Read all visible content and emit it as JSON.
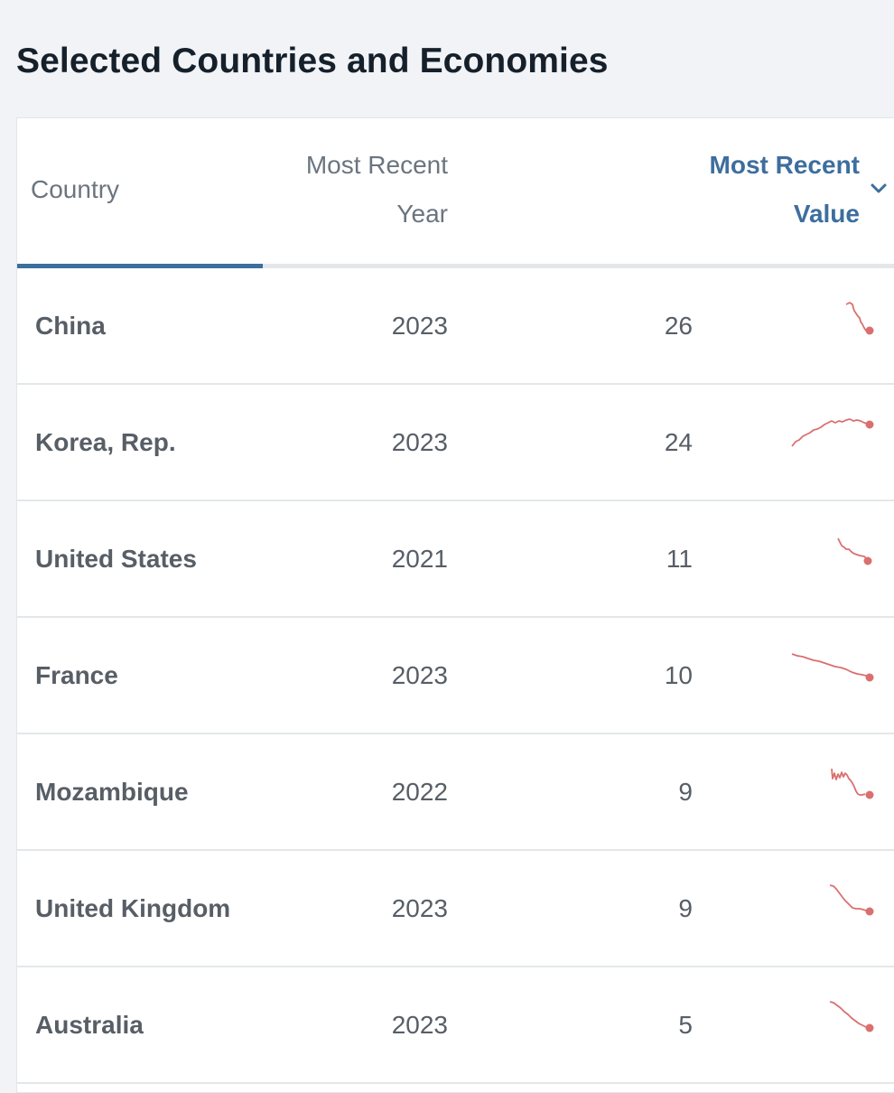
{
  "title": "Selected Countries and Economies",
  "table": {
    "columns": {
      "country": "Country",
      "year": "Most Recent Year",
      "value": "Most Recent Value"
    },
    "sort": {
      "column": "value",
      "direction": "descending",
      "icon": "chevron-down-icon"
    },
    "rows": [
      {
        "country": "China",
        "year": "2023",
        "value": "26"
      },
      {
        "country": "Korea, Rep.",
        "year": "2023",
        "value": "24"
      },
      {
        "country": "United States",
        "year": "2021",
        "value": "11"
      },
      {
        "country": "France",
        "year": "2023",
        "value": "10"
      },
      {
        "country": "Mozambique",
        "year": "2022",
        "value": "9"
      },
      {
        "country": "United Kingdom",
        "year": "2023",
        "value": "9"
      },
      {
        "country": "Australia",
        "year": "2023",
        "value": "5"
      }
    ]
  },
  "colors": {
    "accent": "#3d6e9e",
    "sparkline": "#d9706f",
    "title": "#16202b",
    "text": "#575e66",
    "header_text": "#6b757f",
    "background": "#f1f3f7"
  }
}
